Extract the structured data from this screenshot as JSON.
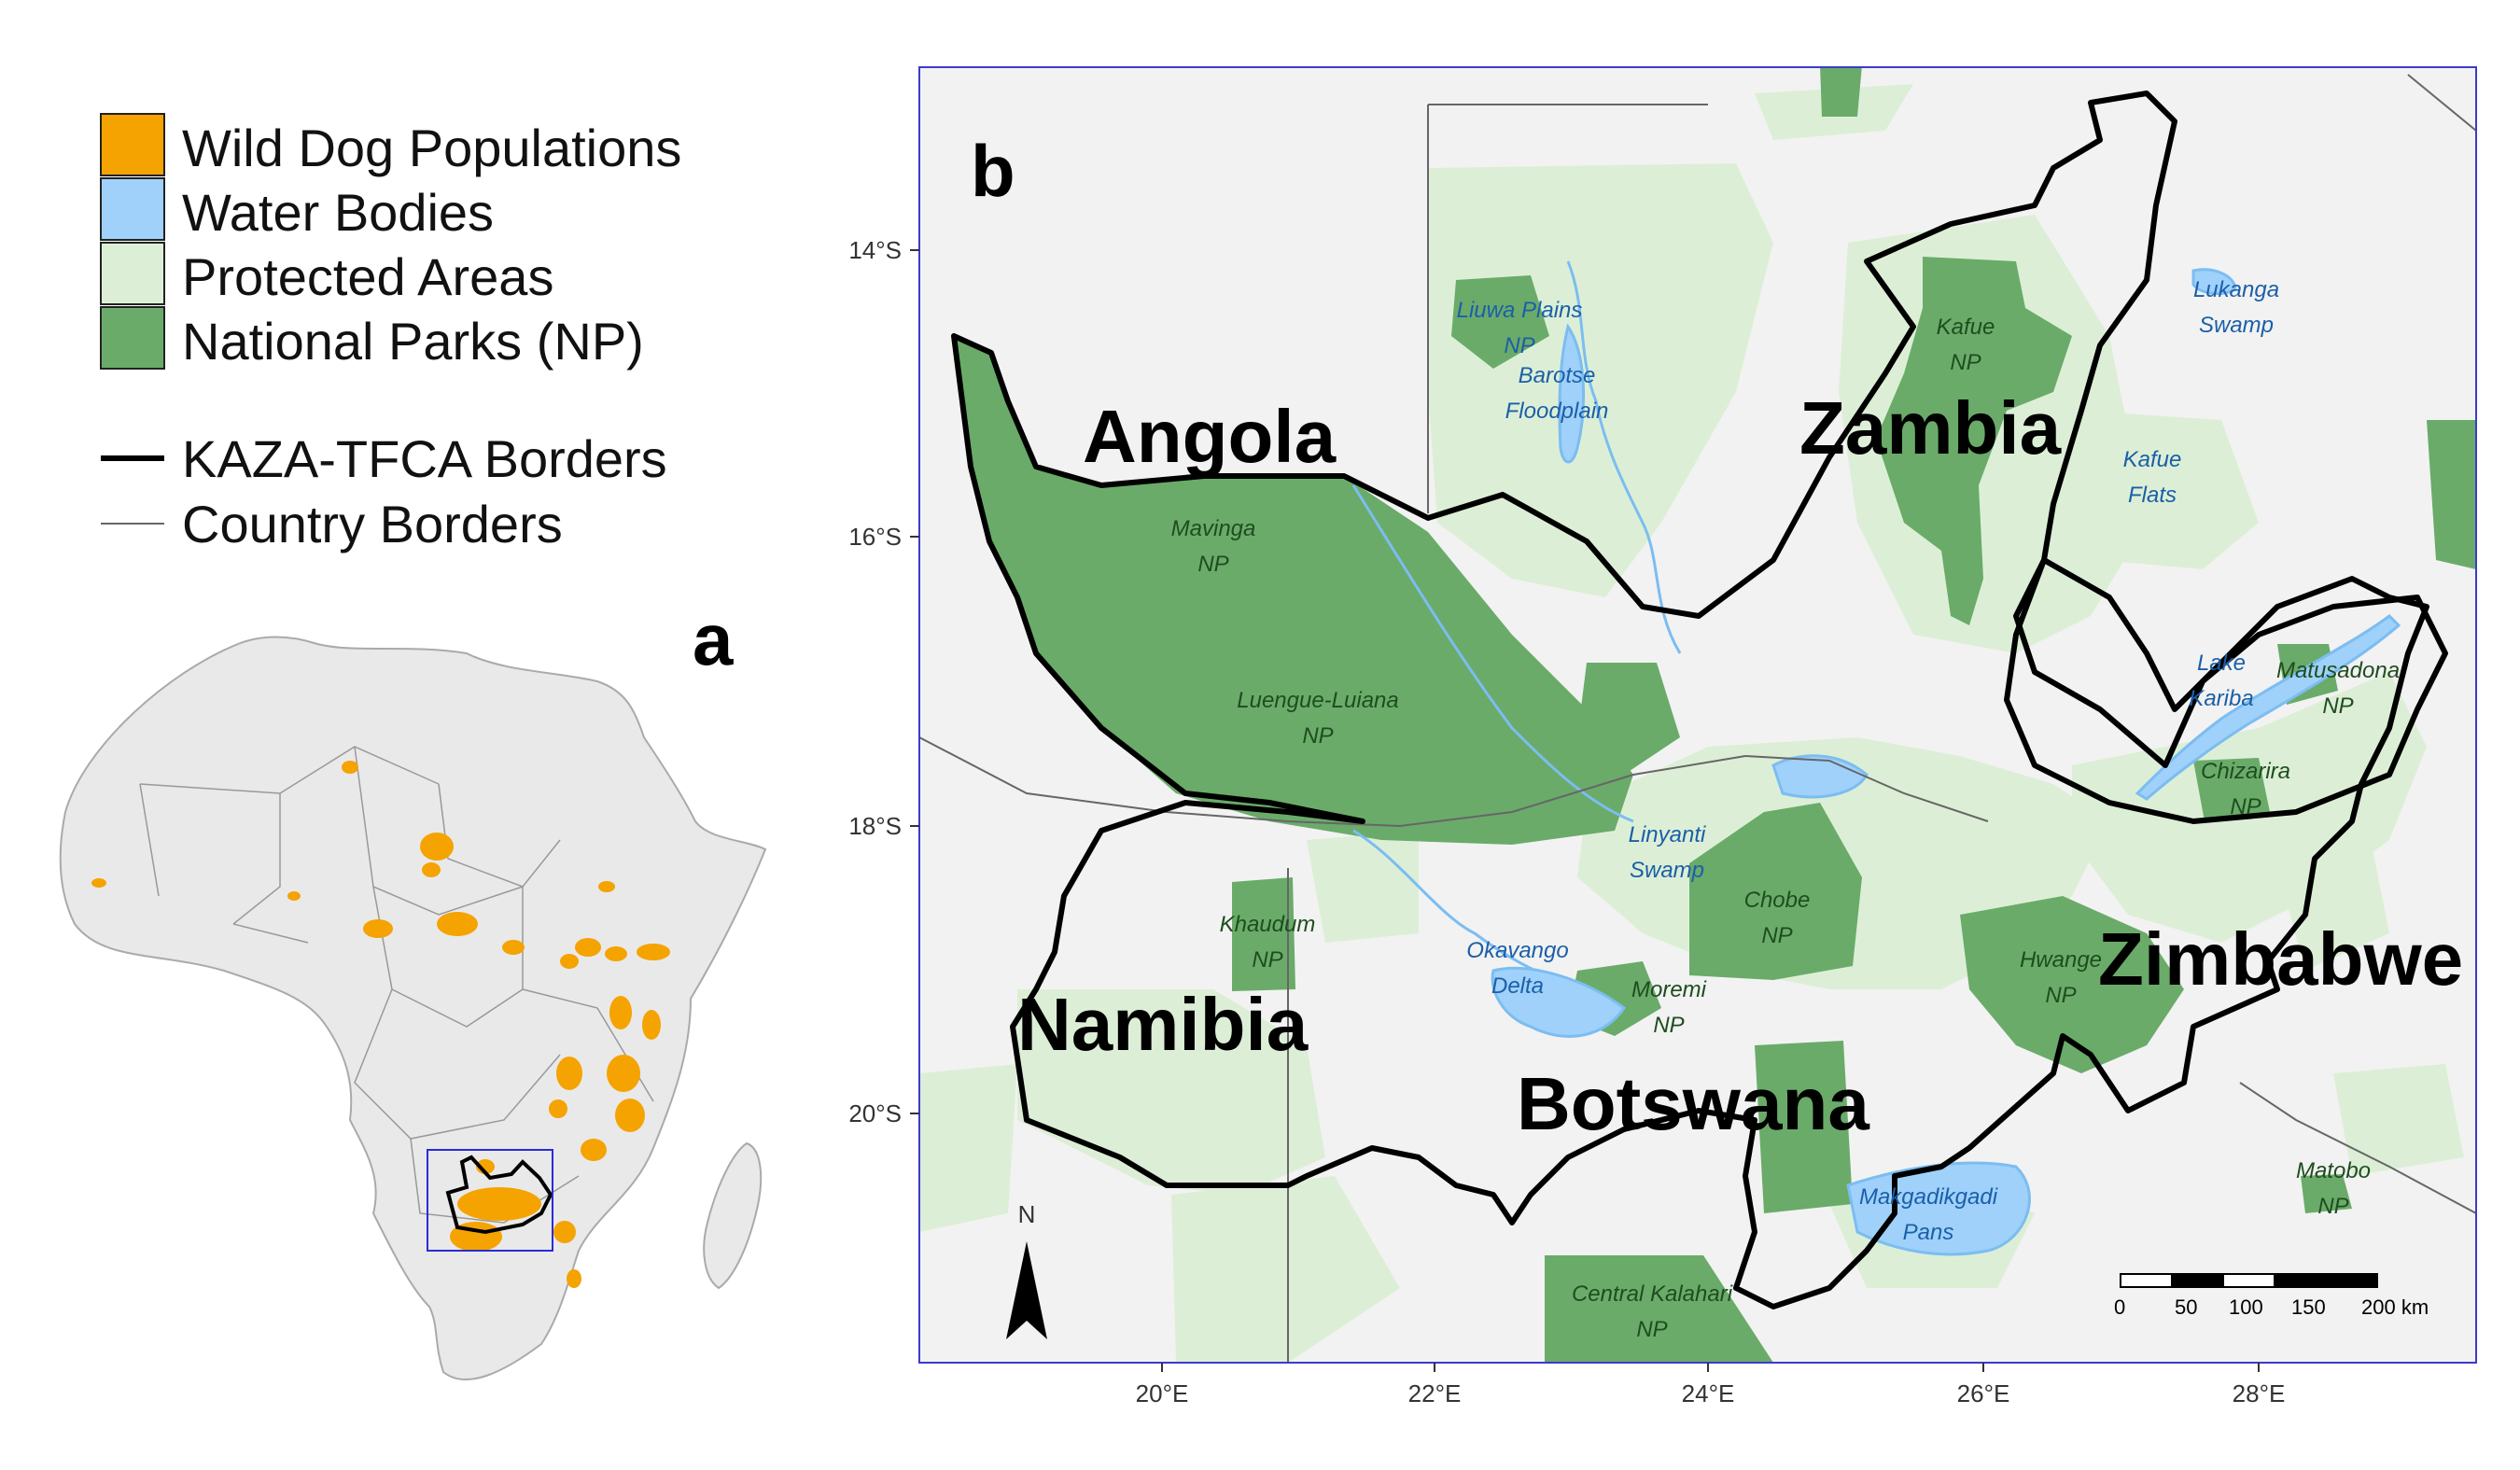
{
  "legend": {
    "items": [
      {
        "label": "Wild Dog Populations",
        "color": "#f5a300"
      },
      {
        "label": "Water Bodies",
        "color": "#9fd1fb"
      },
      {
        "label": "Protected Areas",
        "color": "#dcefd6"
      },
      {
        "label": "National Parks (NP)",
        "color": "#6aab6a"
      }
    ],
    "lines": [
      {
        "label": "KAZA-TFCA Borders",
        "style": "thick-black"
      },
      {
        "label": "Country Borders",
        "style": "thin-gray"
      }
    ]
  },
  "panel_a": {
    "letter": "a"
  },
  "panel_b": {
    "letter": "b"
  },
  "countries": {
    "angola": "Angola",
    "zambia": "Zambia",
    "namibia": "Namibia",
    "botswana": "Botswana",
    "zimbabwe": "Zimbabwe"
  },
  "features": {
    "liuwa": [
      "Liuwa Plains",
      "NP"
    ],
    "barotse": [
      "Barotse",
      "Floodplain"
    ],
    "kafue": [
      "Kafue",
      "NP"
    ],
    "lukanga": [
      "Lukanga",
      "Swamp"
    ],
    "kafue_flats": [
      "Kafue",
      "Flats"
    ],
    "mavinga": [
      "Mavinga",
      "NP"
    ],
    "luengue": [
      "Luengue-Luiana",
      "NP"
    ],
    "kariba": [
      "Lake",
      "Kariba"
    ],
    "matusadona": [
      "Matusadona",
      "NP"
    ],
    "chizarira": [
      "Chizarira",
      "NP"
    ],
    "linyanti": [
      "Linyanti",
      "Swamp"
    ],
    "chobe": [
      "Chobe",
      "NP"
    ],
    "khaudum": [
      "Khaudum",
      "NP"
    ],
    "okavango": [
      "Okavango",
      "Delta"
    ],
    "moremi": [
      "Moremi",
      "NP"
    ],
    "hwange": [
      "Hwange",
      "NP"
    ],
    "makgadikgadi": [
      "Makgadikgadi",
      "Pans"
    ],
    "matobo": [
      "Matobo",
      "NP"
    ],
    "central_kalahari": [
      "Central Kalahari",
      "NP"
    ]
  },
  "axes": {
    "lat_ticks": [
      "14°S",
      "16°S",
      "18°S",
      "20°S"
    ],
    "lon_ticks": [
      "20°E",
      "22°E",
      "24°E",
      "26°E",
      "28°E"
    ]
  },
  "north_arrow": "N",
  "scale_bar": {
    "ticks": [
      "0",
      "50",
      "100",
      "150",
      "200 km"
    ]
  }
}
